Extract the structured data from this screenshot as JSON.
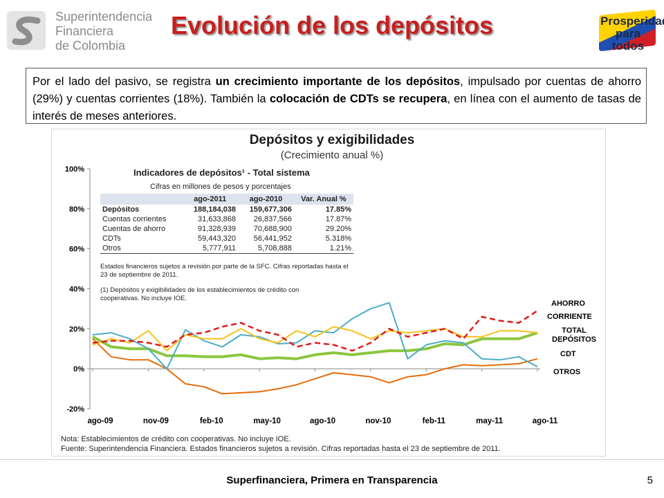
{
  "header": {
    "logo_lines": [
      "Superintendencia",
      "Financiera",
      "de Colombia"
    ],
    "title": "Evolución de los depósitos",
    "right_logo": [
      "Prosperidad",
      "para todos"
    ]
  },
  "intro": {
    "t1": "Por el lado del pasivo, se registra ",
    "b1": "un crecimiento importante de los depósitos",
    "t2": ", impulsado por cuentas de ahorro (29%) y cuentas corrientes (18%). También la ",
    "b2": "colocación de CDTs se recupera",
    "t3": ", en línea con el aumento de tasas de interés de meses anteriores."
  },
  "inner_table": {
    "title": "Indicadores de depósitos¹ - Total sistema",
    "subtitle": "Cifras en millones de pesos y porcentajes",
    "headers": [
      "",
      "ago-2011",
      "ago-2010",
      "Var. Anual %"
    ],
    "rows": [
      [
        "Depósitos",
        "188,184,038",
        "159,677,306",
        "17.85%"
      ],
      [
        "Cuentas corrientes",
        "31,633,868",
        "26,837,566",
        "17.87%"
      ],
      [
        "Cuentas de ahorro",
        "91,328,939",
        "70,688,900",
        "29.20%"
      ],
      [
        "CDTs",
        "59,443,320",
        "56,441,952",
        "5.318%"
      ],
      [
        "Otros",
        "5,777,911",
        "5,708,888",
        "1.21%"
      ]
    ],
    "note": "Estados financieros sujetos a revisión por parte de la SFC. Cifras reportadas hasta el 23 de septiembre de 2011.",
    "footnote": "(1) Depósitos y exigibilidades de los establecimientos de crédito con cooperativas. No incluye IOE."
  },
  "chart_data": {
    "type": "line",
    "title": "Depósitos y exigibilidades",
    "subtitle": "(Crecimiento anual %)",
    "ylim": [
      -20,
      100
    ],
    "yticks": [
      -20,
      0,
      20,
      40,
      60,
      80,
      100
    ],
    "ytick_labels": [
      "-20%",
      "0%",
      "20%",
      "40%",
      "60%",
      "80%",
      "100%"
    ],
    "x_tick_labels": [
      "ago-09",
      "nov-09",
      "feb-10",
      "may-10",
      "ago-10",
      "nov-10",
      "feb-11",
      "may-11",
      "ago-11"
    ],
    "x": [
      "ago-09",
      "sep-09",
      "oct-09",
      "nov-09",
      "dic-09",
      "ene-10",
      "feb-10",
      "mar-10",
      "abr-10",
      "may-10",
      "jun-10",
      "jul-10",
      "ago-10",
      "sep-10",
      "oct-10",
      "nov-10",
      "dic-10",
      "ene-11",
      "feb-11",
      "mar-11",
      "abr-11",
      "may-11",
      "jun-11",
      "jul-11",
      "ago-11"
    ],
    "grid": false,
    "series": [
      {
        "name": "AHORRO",
        "color": "#e01b1b",
        "style": "dashed",
        "width": 2.5,
        "values": [
          13,
          14,
          14,
          13,
          11,
          17,
          18,
          21,
          23,
          19,
          17,
          11,
          13,
          12,
          9,
          13,
          20,
          16,
          18,
          20,
          15,
          26,
          24,
          23,
          29
        ]
      },
      {
        "name": "CORRIENTE",
        "color": "#f5c21b",
        "style": "solid",
        "width": 2,
        "values": [
          12,
          15,
          13,
          19,
          9,
          17,
          15,
          15,
          20,
          15,
          13,
          19,
          16,
          21,
          19,
          15,
          19,
          18,
          19,
          20,
          16,
          16,
          19,
          19,
          18
        ]
      },
      {
        "name": "TOTAL DEPÓSITOS",
        "color": "#8cc63f",
        "style": "solid",
        "width": 4,
        "values": [
          16,
          11,
          10,
          10,
          6.5,
          6.5,
          6,
          6,
          7,
          5,
          5.5,
          5,
          7,
          8,
          7,
          8,
          9,
          9,
          10,
          12.5,
          12,
          15,
          15,
          15,
          18
        ]
      },
      {
        "name": "CDT",
        "color": "#e46c0a",
        "style": "solid",
        "width": 2,
        "values": [
          15,
          6,
          4.5,
          4.5,
          0,
          -7.5,
          -9,
          -12.5,
          -12,
          -11.5,
          -10,
          -8,
          -5,
          -2,
          -3,
          -4,
          -7,
          -4,
          -3,
          0,
          2,
          1.5,
          2,
          2.5,
          5
        ]
      },
      {
        "name": "OTROS",
        "color": "#4bacc6",
        "style": "solid",
        "width": 2,
        "values": [
          17,
          18,
          15,
          10,
          0,
          19.5,
          14,
          11,
          17,
          16,
          12.5,
          13,
          19,
          18,
          25,
          30,
          33,
          5,
          12,
          14,
          13,
          5,
          4.5,
          6,
          1
        ]
      }
    ]
  },
  "note": {
    "line1": "Nota: Establecimientos de crédito con cooperativas. No incluye IOE.",
    "line2": "Fuente: Superintendencia Financiera. Estados financieros sujetos a revisión. Cifras reportadas hasta el 23 de septiembre de 2011."
  },
  "footer": {
    "text": "Superfinanciera, Primera en Transparencia",
    "page": "5"
  }
}
